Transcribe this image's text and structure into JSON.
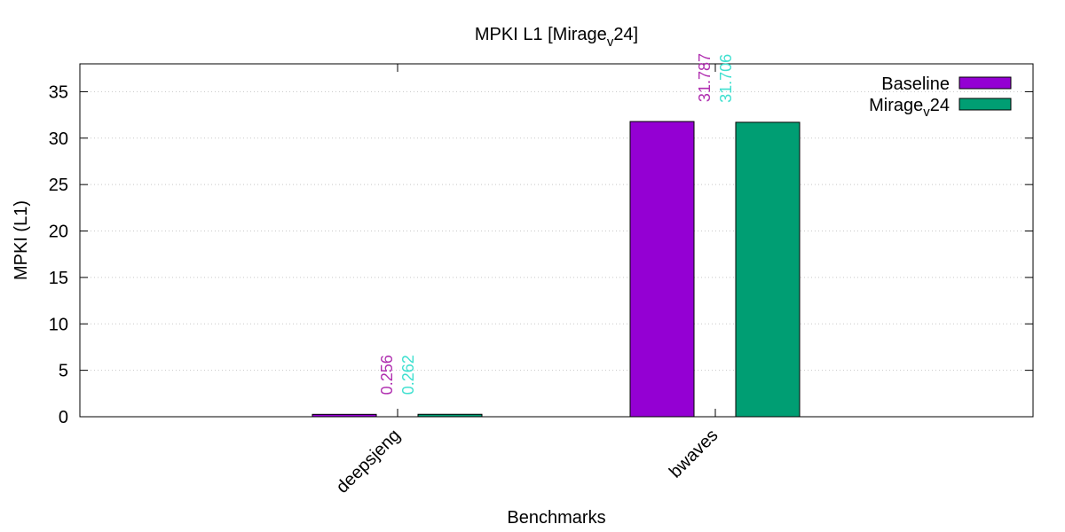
{
  "chart_data": {
    "type": "bar",
    "title_main": "MPKI L1 [Mirage",
    "title_sub": "v",
    "title_end": "24]",
    "xlabel": "Benchmarks",
    "ylabel": "MPKI (L1)",
    "categories": [
      "deepsjeng",
      "bwaves"
    ],
    "ylim": [
      0,
      38
    ],
    "yticks": [
      0,
      5,
      10,
      15,
      20,
      25,
      30,
      35
    ],
    "grid": true,
    "legend_position": "top-right",
    "series": [
      {
        "name": "Baseline",
        "legend_main": "Baseline",
        "legend_sub": "",
        "legend_end": "",
        "color": "#9400d3",
        "label_color": "#b02fb0",
        "values": [
          0.256,
          31.787
        ],
        "labels": [
          "0.256",
          "31.787"
        ]
      },
      {
        "name": "Miragev24",
        "legend_main": "Mirage",
        "legend_sub": "v",
        "legend_end": "24",
        "color": "#009e73",
        "label_color": "#40e0d0",
        "values": [
          0.262,
          31.706
        ],
        "labels": [
          "0.262",
          "31.706"
        ]
      }
    ]
  }
}
